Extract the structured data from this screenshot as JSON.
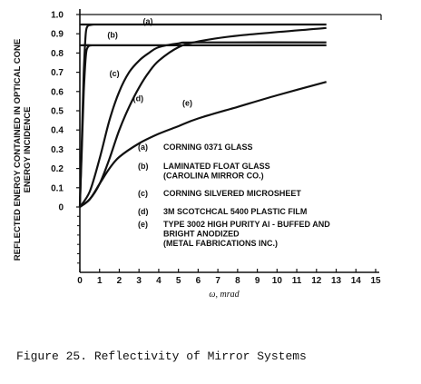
{
  "chart_data": {
    "type": "line",
    "xlabel": "ω, mrad",
    "ylabel_lines": [
      "REFLECTED ENERGY CONTAINED IN OPTICAL CONE",
      "ENERGY INCIDENCE"
    ],
    "xlim": [
      0,
      15
    ],
    "ylim": [
      0,
      1.0
    ],
    "x_ticks": [
      "0",
      "1",
      "2",
      "3",
      "4",
      "5",
      "6",
      "7",
      "8",
      "9",
      "10",
      "11",
      "12",
      "13",
      "14",
      "15"
    ],
    "y_ticks": [
      "0",
      "0.1",
      "0.2",
      "0.3",
      "0.4",
      "0.5",
      "0.6",
      "0.7",
      "0.8",
      "0.9",
      "1.0"
    ],
    "series": [
      {
        "id": "a",
        "name": "(a)",
        "label_at": [
          3.2,
          0.95
        ],
        "x": [
          0,
          0.1,
          0.2,
          0.3,
          0.4,
          0.5,
          0.7,
          1.0,
          12.5
        ],
        "y": [
          0,
          0.35,
          0.7,
          0.9,
          0.94,
          0.945,
          0.948,
          0.948,
          0.948
        ]
      },
      {
        "id": "b",
        "name": "(b)",
        "label_at": [
          1.4,
          0.88
        ],
        "x": [
          0,
          0.1,
          0.2,
          0.3,
          0.4,
          0.6,
          1.0,
          12.5
        ],
        "y": [
          0,
          0.3,
          0.6,
          0.78,
          0.83,
          0.84,
          0.84,
          0.84
        ]
      },
      {
        "id": "c",
        "name": "(c)",
        "label_at": [
          1.5,
          0.68
        ],
        "x": [
          0,
          0.5,
          1.0,
          1.5,
          2.0,
          2.5,
          3.0,
          3.5,
          4.0,
          5.0,
          6.0,
          12.5
        ],
        "y": [
          0,
          0.08,
          0.25,
          0.45,
          0.6,
          0.7,
          0.76,
          0.8,
          0.83,
          0.85,
          0.855,
          0.855
        ]
      },
      {
        "id": "d",
        "name": "(d)",
        "label_at": [
          2.7,
          0.55
        ],
        "x": [
          0,
          0.5,
          1.0,
          1.5,
          2.0,
          2.5,
          3.0,
          3.5,
          4.0,
          5.0,
          6.0,
          8.0,
          12.5
        ],
        "y": [
          0,
          0.04,
          0.12,
          0.25,
          0.4,
          0.52,
          0.62,
          0.7,
          0.76,
          0.83,
          0.86,
          0.89,
          0.93
        ]
      },
      {
        "id": "e",
        "name": "(e)",
        "label_at": [
          5.2,
          0.525
        ],
        "x": [
          0,
          0.5,
          1.0,
          1.5,
          2.0,
          3.0,
          4.0,
          5.0,
          6.0,
          8.0,
          10.0,
          12.5
        ],
        "y": [
          0,
          0.04,
          0.12,
          0.2,
          0.26,
          0.33,
          0.38,
          0.42,
          0.46,
          0.52,
          0.58,
          0.65
        ]
      }
    ],
    "legend": [
      {
        "key": "(a)",
        "lines": [
          "CORNING 0371 GLASS"
        ]
      },
      {
        "key": "(b)",
        "lines": [
          "LAMINATED FLOAT GLASS",
          "(CAROLINA MIRROR CO.)"
        ]
      },
      {
        "key": "(c)",
        "lines": [
          "CORNING SILVERED MICROSHEET"
        ]
      },
      {
        "key": "(d)",
        "lines": [
          "3M SCOTCHCAL 5400 PLASTIC FILM"
        ]
      },
      {
        "key": "(e)",
        "lines": [
          "TYPE 3002 HIGH PURITY Al - BUFFED AND",
          "BRIGHT ANODIZED",
          "(METAL FABRICATIONS INC.)"
        ]
      }
    ]
  },
  "caption": "Figure 25. Reflectivity of Mirror Systems"
}
